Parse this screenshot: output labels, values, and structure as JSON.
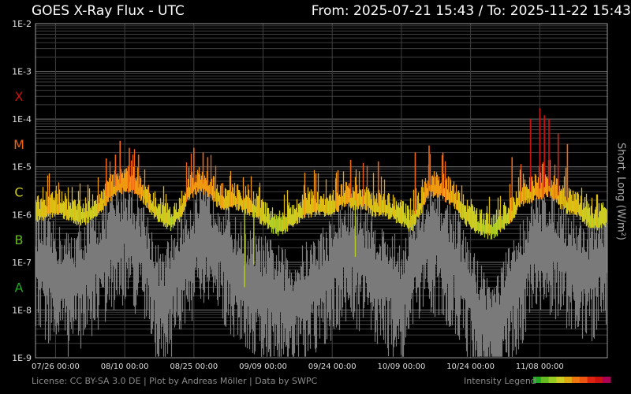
{
  "header": {
    "title": "GOES X-Ray Flux - UTC",
    "range": "From: 2025-07-21 15:43  /  To: 2025-11-22 15:43"
  },
  "footer": {
    "license": "License: CC BY-SA 3.0 DE | Plot by Andreas Möller | Data by SWPC",
    "legend_label": "Intensity Legend"
  },
  "chart_data": {
    "type": "line",
    "title": "GOES X-Ray Flux - UTC",
    "ylabel": "Short, Long (W/m²)",
    "yscale": "log",
    "ylim": [
      1e-09,
      0.01
    ],
    "y_ticks": [
      "1E-2",
      "1E-3",
      "1E-4",
      "1E-5",
      "1E-6",
      "1E-7",
      "1E-8",
      "1E-9"
    ],
    "xlim": [
      "2025-07-21 15:43",
      "2025-11-22 15:43"
    ],
    "x_ticks": [
      {
        "label": "07/26 00:00",
        "date": "2025-07-26"
      },
      {
        "label": "08/10 00:00",
        "date": "2025-08-10"
      },
      {
        "label": "08/25 00:00",
        "date": "2025-08-25"
      },
      {
        "label": "09/09 00:00",
        "date": "2025-09-09"
      },
      {
        "label": "09/24 00:00",
        "date": "2025-09-24"
      },
      {
        "label": "10/09 00:00",
        "date": "2025-10-09"
      },
      {
        "label": "10/24 00:00",
        "date": "2025-10-24"
      },
      {
        "label": "11/08 00:00",
        "date": "2025-11-08"
      }
    ],
    "flare_classes": [
      {
        "label": "X",
        "color": "#cc1111",
        "value": 0.0003
      },
      {
        "label": "M",
        "color": "#ee6611",
        "value": 3e-05
      },
      {
        "label": "C",
        "color": "#cccc22",
        "value": 3e-06
      },
      {
        "label": "B",
        "color": "#66bb22",
        "value": 3e-07
      },
      {
        "label": "A",
        "color": "#22aa22",
        "value": 3e-08
      }
    ],
    "grid": true,
    "series": [
      {
        "name": "Long",
        "colored_by_intensity": true,
        "points": [
          {
            "x": "2025-07-21",
            "y": 1e-06
          },
          {
            "x": "2025-07-23",
            "y": 1.3e-06
          },
          {
            "x": "2025-07-25",
            "y": 1.4e-06
          },
          {
            "x": "2025-07-27",
            "y": 1.6e-06
          },
          {
            "x": "2025-07-29",
            "y": 1.2e-06
          },
          {
            "x": "2025-07-31",
            "y": 1e-06
          },
          {
            "x": "2025-08-02",
            "y": 1.1e-06
          },
          {
            "x": "2025-08-04",
            "y": 1.4e-06
          },
          {
            "x": "2025-08-06",
            "y": 2.5e-06
          },
          {
            "x": "2025-08-08",
            "y": 4e-06
          },
          {
            "x": "2025-08-10",
            "y": 5e-06
          },
          {
            "x": "2025-08-12",
            "y": 4.5e-06
          },
          {
            "x": "2025-08-14",
            "y": 3e-06
          },
          {
            "x": "2025-08-16",
            "y": 1.6e-06
          },
          {
            "x": "2025-08-18",
            "y": 1e-06
          },
          {
            "x": "2025-08-20",
            "y": 8e-07
          },
          {
            "x": "2025-08-22",
            "y": 1.2e-06
          },
          {
            "x": "2025-08-24",
            "y": 3.5e-06
          },
          {
            "x": "2025-08-26",
            "y": 5e-06
          },
          {
            "x": "2025-08-28",
            "y": 4e-06
          },
          {
            "x": "2025-08-30",
            "y": 2.5e-06
          },
          {
            "x": "2025-09-01",
            "y": 2e-06
          },
          {
            "x": "2025-09-03",
            "y": 2.2e-06
          },
          {
            "x": "2025-09-05",
            "y": 1.8e-06
          },
          {
            "x": "2025-09-07",
            "y": 1.5e-06
          },
          {
            "x": "2025-09-09",
            "y": 1e-06
          },
          {
            "x": "2025-09-11",
            "y": 7e-07
          },
          {
            "x": "2025-09-13",
            "y": 6e-07
          },
          {
            "x": "2025-09-15",
            "y": 9e-07
          },
          {
            "x": "2025-09-17",
            "y": 1.2e-06
          },
          {
            "x": "2025-09-19",
            "y": 1.5e-06
          },
          {
            "x": "2025-09-21",
            "y": 1.6e-06
          },
          {
            "x": "2025-09-23",
            "y": 1.5e-06
          },
          {
            "x": "2025-09-25",
            "y": 1.8e-06
          },
          {
            "x": "2025-09-27",
            "y": 2.5e-06
          },
          {
            "x": "2025-09-29",
            "y": 2e-06
          },
          {
            "x": "2025-10-01",
            "y": 2.2e-06
          },
          {
            "x": "2025-10-03",
            "y": 1.5e-06
          },
          {
            "x": "2025-10-05",
            "y": 1.5e-06
          },
          {
            "x": "2025-10-07",
            "y": 1.3e-06
          },
          {
            "x": "2025-10-09",
            "y": 1e-06
          },
          {
            "x": "2025-10-11",
            "y": 7e-07
          },
          {
            "x": "2025-10-13",
            "y": 1.5e-06
          },
          {
            "x": "2025-10-15",
            "y": 4e-06
          },
          {
            "x": "2025-10-17",
            "y": 4e-06
          },
          {
            "x": "2025-10-19",
            "y": 3e-06
          },
          {
            "x": "2025-10-21",
            "y": 2e-06
          },
          {
            "x": "2025-10-23",
            "y": 1e-06
          },
          {
            "x": "2025-10-25",
            "y": 7e-07
          },
          {
            "x": "2025-10-27",
            "y": 5.5e-07
          },
          {
            "x": "2025-10-29",
            "y": 5e-07
          },
          {
            "x": "2025-10-31",
            "y": 8e-07
          },
          {
            "x": "2025-11-02",
            "y": 1.2e-06
          },
          {
            "x": "2025-11-04",
            "y": 2.5e-06
          },
          {
            "x": "2025-11-06",
            "y": 3e-06
          },
          {
            "x": "2025-11-08",
            "y": 3.5e-06
          },
          {
            "x": "2025-11-10",
            "y": 4e-06
          },
          {
            "x": "2025-11-12",
            "y": 2.5e-06
          },
          {
            "x": "2025-11-14",
            "y": 1.8e-06
          },
          {
            "x": "2025-11-16",
            "y": 1.5e-06
          },
          {
            "x": "2025-11-18",
            "y": 1e-06
          },
          {
            "x": "2025-11-20",
            "y": 8e-07
          },
          {
            "x": "2025-11-22",
            "y": 9e-07
          }
        ],
        "peaks": [
          {
            "x": "2025-08-06",
            "y": 1.5e-05
          },
          {
            "x": "2025-08-08",
            "y": 1.8e-05
          },
          {
            "x": "2025-08-09",
            "y": 3.5e-05
          },
          {
            "x": "2025-08-11",
            "y": 2.5e-05
          },
          {
            "x": "2025-08-13",
            "y": 1.8e-05
          },
          {
            "x": "2025-08-25",
            "y": 2.5e-05
          },
          {
            "x": "2025-08-27",
            "y": 2e-05
          },
          {
            "x": "2025-08-28",
            "y": 1.6e-05
          },
          {
            "x": "2025-09-28",
            "y": 1.4e-05
          },
          {
            "x": "2025-10-04",
            "y": 1.3e-05
          },
          {
            "x": "2025-10-12",
            "y": 2e-05
          },
          {
            "x": "2025-10-15",
            "y": 2.8e-05
          },
          {
            "x": "2025-10-18",
            "y": 2e-05
          },
          {
            "x": "2025-11-02",
            "y": 1.6e-05
          },
          {
            "x": "2025-11-06",
            "y": 0.0001
          },
          {
            "x": "2025-11-08",
            "y": 0.00017
          },
          {
            "x": "2025-11-09",
            "y": 0.00012
          },
          {
            "x": "2025-11-10",
            "y": 0.0001
          },
          {
            "x": "2025-11-12",
            "y": 5e-05
          },
          {
            "x": "2025-11-14",
            "y": 3e-05
          }
        ],
        "dips": [
          {
            "x": "2025-09-05",
            "y": 3e-08
          },
          {
            "x": "2025-09-07",
            "y": 9e-08
          },
          {
            "x": "2025-09-29",
            "y": 1.3e-07
          }
        ]
      },
      {
        "name": "Short",
        "color": "#7a7a7a",
        "points": [
          {
            "x": "2025-07-21",
            "y": 1e-07
          },
          {
            "x": "2025-07-25",
            "y": 5e-08
          },
          {
            "x": "2025-07-29",
            "y": 3e-08
          },
          {
            "x": "2025-08-02",
            "y": 6e-08
          },
          {
            "x": "2025-08-06",
            "y": 1.5e-07
          },
          {
            "x": "2025-08-10",
            "y": 4e-07
          },
          {
            "x": "2025-08-14",
            "y": 1.5e-07
          },
          {
            "x": "2025-08-18",
            "y": 1e-08
          },
          {
            "x": "2025-08-22",
            "y": 8e-08
          },
          {
            "x": "2025-08-26",
            "y": 2.5e-07
          },
          {
            "x": "2025-08-30",
            "y": 2.5e-07
          },
          {
            "x": "2025-09-03",
            "y": 6e-08
          },
          {
            "x": "2025-09-07",
            "y": 3e-08
          },
          {
            "x": "2025-09-11",
            "y": 2e-08
          },
          {
            "x": "2025-09-15",
            "y": 1e-08
          },
          {
            "x": "2025-09-19",
            "y": 2e-08
          },
          {
            "x": "2025-09-23",
            "y": 5e-08
          },
          {
            "x": "2025-09-27",
            "y": 1.5e-07
          },
          {
            "x": "2025-10-01",
            "y": 1e-07
          },
          {
            "x": "2025-10-05",
            "y": 4e-08
          },
          {
            "x": "2025-10-09",
            "y": 2e-08
          },
          {
            "x": "2025-10-13",
            "y": 1.5e-07
          },
          {
            "x": "2025-10-17",
            "y": 2.5e-07
          },
          {
            "x": "2025-10-21",
            "y": 8e-08
          },
          {
            "x": "2025-10-25",
            "y": 1e-08
          },
          {
            "x": "2025-10-29",
            "y": 3e-09
          },
          {
            "x": "2025-11-02",
            "y": 2e-08
          },
          {
            "x": "2025-11-06",
            "y": 1.5e-07
          },
          {
            "x": "2025-11-10",
            "y": 2.5e-07
          },
          {
            "x": "2025-11-14",
            "y": 1e-07
          },
          {
            "x": "2025-11-18",
            "y": 5e-08
          },
          {
            "x": "2025-11-22",
            "y": 1e-07
          }
        ]
      }
    ],
    "intensity_legend_colors": [
      "#22aa22",
      "#66bb22",
      "#99cc22",
      "#cccc22",
      "#ddaa11",
      "#ee7711",
      "#ee5511",
      "#dd2211",
      "#cc1111",
      "#aa0055"
    ]
  }
}
